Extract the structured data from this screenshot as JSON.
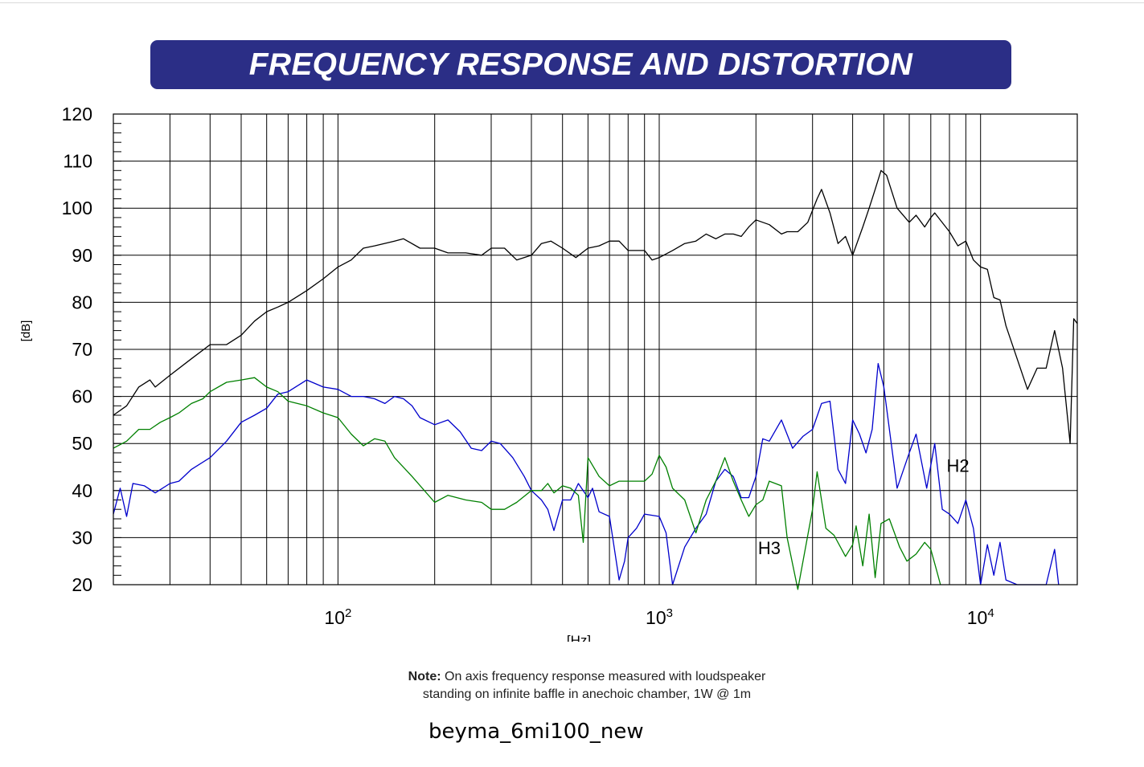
{
  "banner": {
    "title": "FREQUENCY RESPONSE AND DISTORTION"
  },
  "note": {
    "label": "Note:",
    "line1": " On axis frequency response measured with loudspeaker",
    "line2": "standing on infinite baffle in anechoic chamber, 1W @ 1m"
  },
  "filename": "beyma_6mi100_new",
  "chart_data": {
    "type": "line",
    "title": "FREQUENCY RESPONSE AND DISTORTION",
    "xlabel": "[Hz]",
    "ylabel": "[dB]",
    "x_scale": "log",
    "xlim": [
      20,
      20000
    ],
    "ylim": [
      20,
      120
    ],
    "y_ticks": [
      20,
      30,
      40,
      50,
      60,
      70,
      80,
      90,
      100,
      110,
      120
    ],
    "x_tick_labels": [
      {
        "base": "10",
        "exp": "2",
        "value": 100
      },
      {
        "base": "10",
        "exp": "3",
        "value": 1000
      },
      {
        "base": "10",
        "exp": "4",
        "value": 10000
      }
    ],
    "grid": true,
    "annotations": [
      {
        "text": "H2",
        "x": 8500,
        "y": 44
      },
      {
        "text": "H3",
        "x": 2200,
        "y": 26.5
      }
    ],
    "series": [
      {
        "color": "#000000",
        "points": [
          [
            20,
            56
          ],
          [
            22,
            58
          ],
          [
            24,
            62
          ],
          [
            26,
            63.5
          ],
          [
            27,
            62
          ],
          [
            30,
            64.5
          ],
          [
            35,
            68
          ],
          [
            40,
            71
          ],
          [
            45,
            71
          ],
          [
            50,
            73
          ],
          [
            55,
            76
          ],
          [
            60,
            78
          ],
          [
            65,
            79
          ],
          [
            70,
            80
          ],
          [
            80,
            82.5
          ],
          [
            90,
            85
          ],
          [
            100,
            87.5
          ],
          [
            110,
            89
          ],
          [
            120,
            91.5
          ],
          [
            130,
            92
          ],
          [
            150,
            93
          ],
          [
            160,
            93.5
          ],
          [
            180,
            91.5
          ],
          [
            200,
            91.5
          ],
          [
            220,
            90.5
          ],
          [
            250,
            90.5
          ],
          [
            280,
            90
          ],
          [
            300,
            91.5
          ],
          [
            330,
            91.5
          ],
          [
            360,
            89
          ],
          [
            400,
            90
          ],
          [
            430,
            92.5
          ],
          [
            460,
            93
          ],
          [
            500,
            91.5
          ],
          [
            550,
            89.5
          ],
          [
            600,
            91.5
          ],
          [
            650,
            92
          ],
          [
            700,
            93
          ],
          [
            750,
            93
          ],
          [
            800,
            91
          ],
          [
            900,
            91
          ],
          [
            950,
            89
          ],
          [
            1000,
            89.5
          ],
          [
            1100,
            91
          ],
          [
            1200,
            92.5
          ],
          [
            1300,
            93
          ],
          [
            1400,
            94.5
          ],
          [
            1500,
            93.5
          ],
          [
            1600,
            94.5
          ],
          [
            1700,
            94.5
          ],
          [
            1800,
            94
          ],
          [
            1900,
            96
          ],
          [
            2000,
            97.5
          ],
          [
            2200,
            96.5
          ],
          [
            2400,
            94.5
          ],
          [
            2500,
            95
          ],
          [
            2700,
            95
          ],
          [
            2900,
            97
          ],
          [
            3100,
            102
          ],
          [
            3200,
            104
          ],
          [
            3400,
            99
          ],
          [
            3600,
            92.5
          ],
          [
            3800,
            94
          ],
          [
            4000,
            90
          ],
          [
            4300,
            96
          ],
          [
            4500,
            100
          ],
          [
            4700,
            104
          ],
          [
            4900,
            108
          ],
          [
            5100,
            107
          ],
          [
            5500,
            100
          ],
          [
            6000,
            97
          ],
          [
            6300,
            98.5
          ],
          [
            6700,
            96
          ],
          [
            7000,
            98
          ],
          [
            7200,
            99
          ],
          [
            8000,
            95
          ],
          [
            8500,
            92
          ],
          [
            9000,
            93
          ],
          [
            9500,
            89
          ],
          [
            10000,
            87.5
          ],
          [
            10500,
            87
          ],
          [
            11000,
            81
          ],
          [
            11500,
            80.5
          ],
          [
            12000,
            75
          ],
          [
            13000,
            68
          ],
          [
            14000,
            61.5
          ],
          [
            15000,
            66
          ],
          [
            16000,
            66
          ],
          [
            17000,
            74
          ],
          [
            18000,
            66
          ],
          [
            19000,
            50
          ],
          [
            19500,
            76.5
          ],
          [
            20000,
            75.5
          ]
        ]
      },
      {
        "name": "H2",
        "color": "#0000cc",
        "points": [
          [
            20,
            35
          ],
          [
            21,
            40.5
          ],
          [
            22,
            34.5
          ],
          [
            23,
            41.5
          ],
          [
            25,
            41
          ],
          [
            27,
            39.5
          ],
          [
            30,
            41.5
          ],
          [
            32,
            42
          ],
          [
            35,
            44.5
          ],
          [
            40,
            47
          ],
          [
            45,
            50.5
          ],
          [
            50,
            54.5
          ],
          [
            55,
            56
          ],
          [
            60,
            57.5
          ],
          [
            65,
            60.5
          ],
          [
            70,
            61
          ],
          [
            80,
            63.5
          ],
          [
            90,
            62
          ],
          [
            100,
            61.5
          ],
          [
            110,
            60
          ],
          [
            120,
            60
          ],
          [
            130,
            59.5
          ],
          [
            140,
            58.5
          ],
          [
            150,
            60
          ],
          [
            160,
            59.5
          ],
          [
            170,
            58
          ],
          [
            180,
            55.5
          ],
          [
            200,
            54
          ],
          [
            220,
            55
          ],
          [
            240,
            52.5
          ],
          [
            260,
            49
          ],
          [
            280,
            48.5
          ],
          [
            300,
            50.5
          ],
          [
            320,
            50
          ],
          [
            350,
            47
          ],
          [
            380,
            43
          ],
          [
            400,
            40
          ],
          [
            430,
            38
          ],
          [
            450,
            36
          ],
          [
            470,
            31.5
          ],
          [
            500,
            38
          ],
          [
            530,
            38
          ],
          [
            560,
            41.5
          ],
          [
            600,
            38.5
          ],
          [
            620,
            40.5
          ],
          [
            650,
            35.5
          ],
          [
            700,
            34.5
          ],
          [
            750,
            21
          ],
          [
            780,
            25
          ],
          [
            800,
            30
          ],
          [
            850,
            32
          ],
          [
            900,
            35
          ],
          [
            1000,
            34.5
          ],
          [
            1050,
            31
          ],
          [
            1100,
            20
          ],
          [
            1200,
            28
          ],
          [
            1300,
            32
          ],
          [
            1400,
            35
          ],
          [
            1500,
            42
          ],
          [
            1600,
            44.5
          ],
          [
            1700,
            43
          ],
          [
            1800,
            38.5
          ],
          [
            1900,
            38.5
          ],
          [
            2000,
            43
          ],
          [
            2100,
            51
          ],
          [
            2200,
            50.5
          ],
          [
            2400,
            55
          ],
          [
            2600,
            49
          ],
          [
            2800,
            51.5
          ],
          [
            3000,
            53
          ],
          [
            3200,
            58.5
          ],
          [
            3400,
            59
          ],
          [
            3600,
            44.5
          ],
          [
            3800,
            41.5
          ],
          [
            4000,
            55
          ],
          [
            4200,
            52
          ],
          [
            4400,
            48
          ],
          [
            4600,
            53
          ],
          [
            4800,
            67
          ],
          [
            5000,
            62
          ],
          [
            5500,
            40.5
          ],
          [
            6000,
            48
          ],
          [
            6300,
            52
          ],
          [
            6800,
            40.5
          ],
          [
            7200,
            50
          ],
          [
            7600,
            36
          ],
          [
            8000,
            35
          ],
          [
            8500,
            33
          ],
          [
            9000,
            38
          ],
          [
            9500,
            32
          ],
          [
            10000,
            20
          ],
          [
            10500,
            28.5
          ],
          [
            11000,
            22
          ],
          [
            11500,
            29
          ],
          [
            12000,
            21
          ],
          [
            13000,
            20
          ],
          [
            15000,
            20
          ],
          [
            16000,
            20
          ],
          [
            17000,
            27.5
          ],
          [
            17500,
            20
          ]
        ]
      },
      {
        "name": "H3",
        "color": "#008000",
        "points": [
          [
            20,
            49
          ],
          [
            22,
            50.5
          ],
          [
            24,
            53
          ],
          [
            26,
            53
          ],
          [
            28,
            54.5
          ],
          [
            30,
            55.5
          ],
          [
            32,
            56.5
          ],
          [
            35,
            58.5
          ],
          [
            38,
            59.5
          ],
          [
            40,
            61
          ],
          [
            45,
            63
          ],
          [
            50,
            63.5
          ],
          [
            55,
            64
          ],
          [
            60,
            62
          ],
          [
            65,
            61
          ],
          [
            70,
            59
          ],
          [
            80,
            58
          ],
          [
            90,
            56.5
          ],
          [
            100,
            55.5
          ],
          [
            110,
            52
          ],
          [
            120,
            49.5
          ],
          [
            130,
            51
          ],
          [
            140,
            50.5
          ],
          [
            150,
            47
          ],
          [
            170,
            43
          ],
          [
            200,
            37.5
          ],
          [
            220,
            39
          ],
          [
            250,
            38
          ],
          [
            280,
            37.5
          ],
          [
            300,
            36
          ],
          [
            330,
            36
          ],
          [
            360,
            37.5
          ],
          [
            400,
            40
          ],
          [
            430,
            40
          ],
          [
            450,
            41.5
          ],
          [
            470,
            39.5
          ],
          [
            500,
            41
          ],
          [
            530,
            40.5
          ],
          [
            560,
            39
          ],
          [
            580,
            29
          ],
          [
            600,
            47
          ],
          [
            650,
            43
          ],
          [
            700,
            41
          ],
          [
            750,
            42
          ],
          [
            800,
            42
          ],
          [
            850,
            42
          ],
          [
            900,
            42
          ],
          [
            950,
            43.5
          ],
          [
            1000,
            47.5
          ],
          [
            1050,
            45
          ],
          [
            1100,
            40.5
          ],
          [
            1200,
            38
          ],
          [
            1300,
            31
          ],
          [
            1400,
            38
          ],
          [
            1500,
            42
          ],
          [
            1600,
            47
          ],
          [
            1700,
            42
          ],
          [
            1800,
            38
          ],
          [
            1900,
            34.5
          ],
          [
            2000,
            37
          ],
          [
            2100,
            38
          ],
          [
            2200,
            42
          ],
          [
            2400,
            41
          ],
          [
            2500,
            30
          ],
          [
            2700,
            19
          ],
          [
            3000,
            36
          ],
          [
            3100,
            44
          ],
          [
            3300,
            32
          ],
          [
            3500,
            30.5
          ],
          [
            3800,
            26
          ],
          [
            4000,
            28.5
          ],
          [
            4100,
            32.5
          ],
          [
            4300,
            24
          ],
          [
            4500,
            35
          ],
          [
            4700,
            21.5
          ],
          [
            4900,
            33
          ],
          [
            5200,
            34
          ],
          [
            5600,
            28
          ],
          [
            5900,
            25
          ],
          [
            6300,
            26.5
          ],
          [
            6700,
            29
          ],
          [
            7000,
            27.5
          ],
          [
            7300,
            23
          ],
          [
            7500,
            20
          ]
        ]
      }
    ]
  }
}
